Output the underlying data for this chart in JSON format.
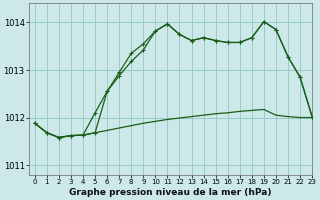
{
  "title": "Graphe pression niveau de la mer (hPa)",
  "bg_color": "#cce8e8",
  "grid_color": "#99cccc",
  "line_color": "#1a5e1a",
  "xlim": [
    -0.5,
    23
  ],
  "ylim": [
    1010.8,
    1014.4
  ],
  "yticks": [
    1011,
    1012,
    1013,
    1014
  ],
  "xticks": [
    0,
    1,
    2,
    3,
    4,
    5,
    6,
    7,
    8,
    9,
    10,
    11,
    12,
    13,
    14,
    15,
    16,
    17,
    18,
    19,
    20,
    21,
    22,
    23
  ],
  "series1_x": [
    0,
    1,
    2,
    3,
    4,
    5,
    6,
    7,
    8,
    9,
    10,
    11,
    12,
    13,
    14,
    15,
    16,
    17,
    18,
    19,
    20,
    21,
    22,
    23
  ],
  "series1_y": [
    1011.88,
    1011.68,
    1011.58,
    1011.62,
    1011.63,
    1011.68,
    1011.73,
    1011.78,
    1011.83,
    1011.88,
    1011.92,
    1011.96,
    1011.99,
    1012.02,
    1012.05,
    1012.08,
    1012.1,
    1012.13,
    1012.15,
    1012.17,
    1012.05,
    1012.02,
    1012.0,
    1012.0
  ],
  "series2_x": [
    0,
    1,
    2,
    3,
    4,
    5,
    6,
    7,
    8,
    9,
    10,
    11,
    12,
    13,
    14,
    15,
    16,
    17,
    18,
    19,
    20,
    21,
    22,
    23
  ],
  "series2_y": [
    1011.88,
    1011.68,
    1011.58,
    1011.62,
    1011.63,
    1012.1,
    1012.55,
    1012.88,
    1013.18,
    1013.42,
    1013.82,
    1013.97,
    1013.75,
    1013.62,
    1013.68,
    1013.62,
    1013.58,
    1013.58,
    1013.68,
    1014.02,
    1013.85,
    1013.28,
    1012.85,
    1012.02
  ],
  "series3_x": [
    0,
    1,
    2,
    3,
    4,
    5,
    6,
    7,
    8,
    9,
    10,
    11,
    12,
    13,
    14,
    15,
    16,
    17,
    18,
    19,
    20,
    21,
    22,
    23
  ],
  "series3_y": [
    1011.88,
    1011.68,
    1011.58,
    1011.62,
    1011.63,
    1011.68,
    1012.55,
    1012.95,
    1013.35,
    1013.55,
    1013.82,
    1013.97,
    1013.75,
    1013.62,
    1013.68,
    1013.62,
    1013.58,
    1013.58,
    1013.68,
    1014.02,
    1013.85,
    1013.28,
    1012.85,
    1012.02
  ]
}
